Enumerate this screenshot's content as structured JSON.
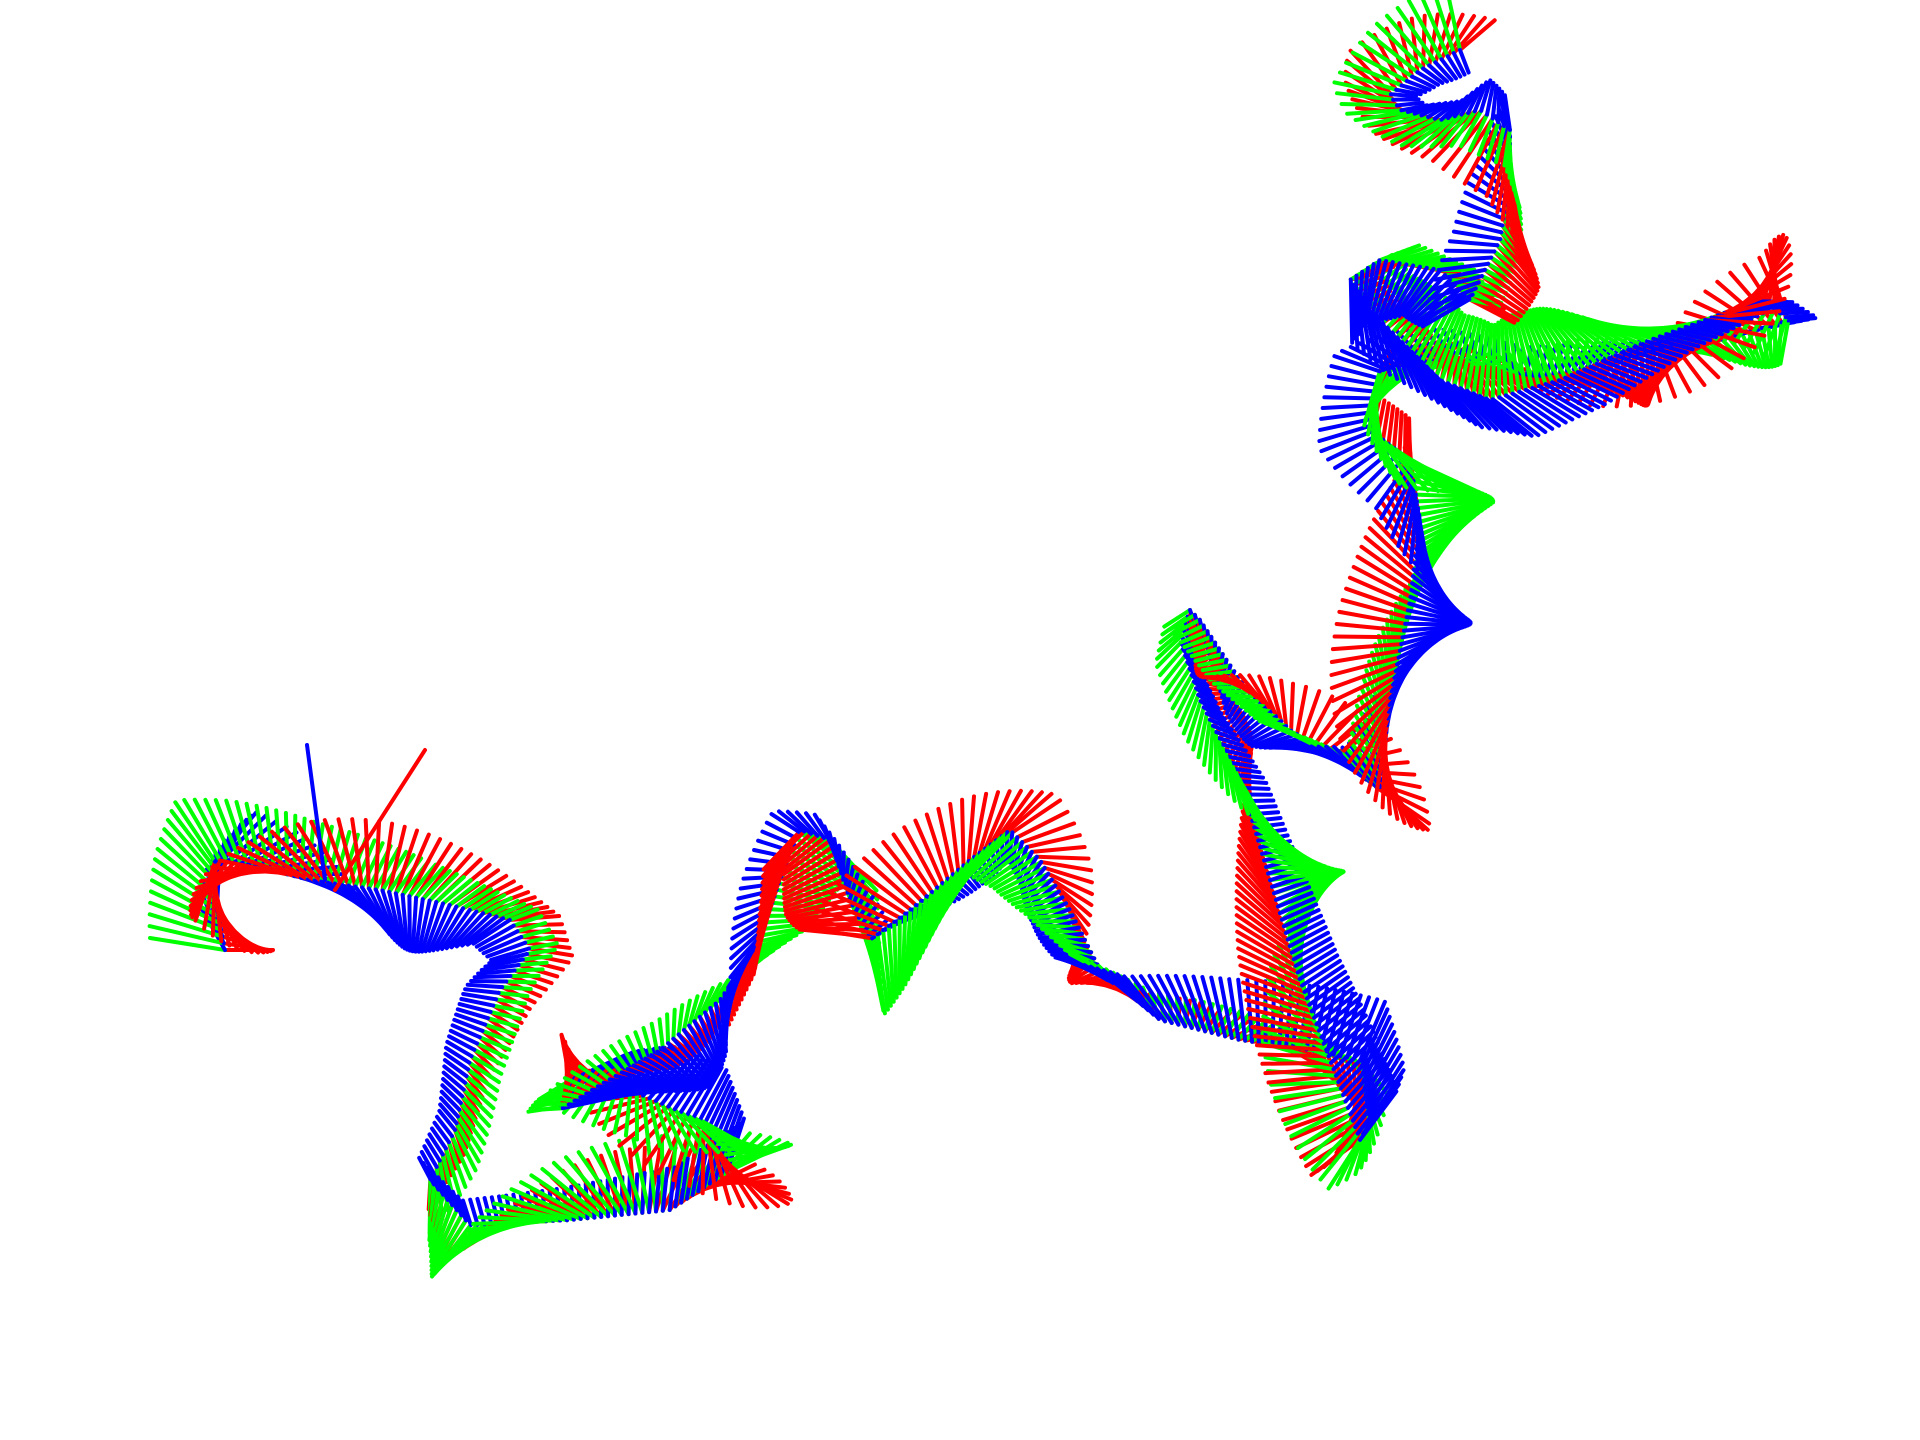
{
  "colors": {
    "background": "#ffffff",
    "axis_x": "#ff0000",
    "axis_y": "#00ff00",
    "axis_z": "#0000ff"
  }
}
